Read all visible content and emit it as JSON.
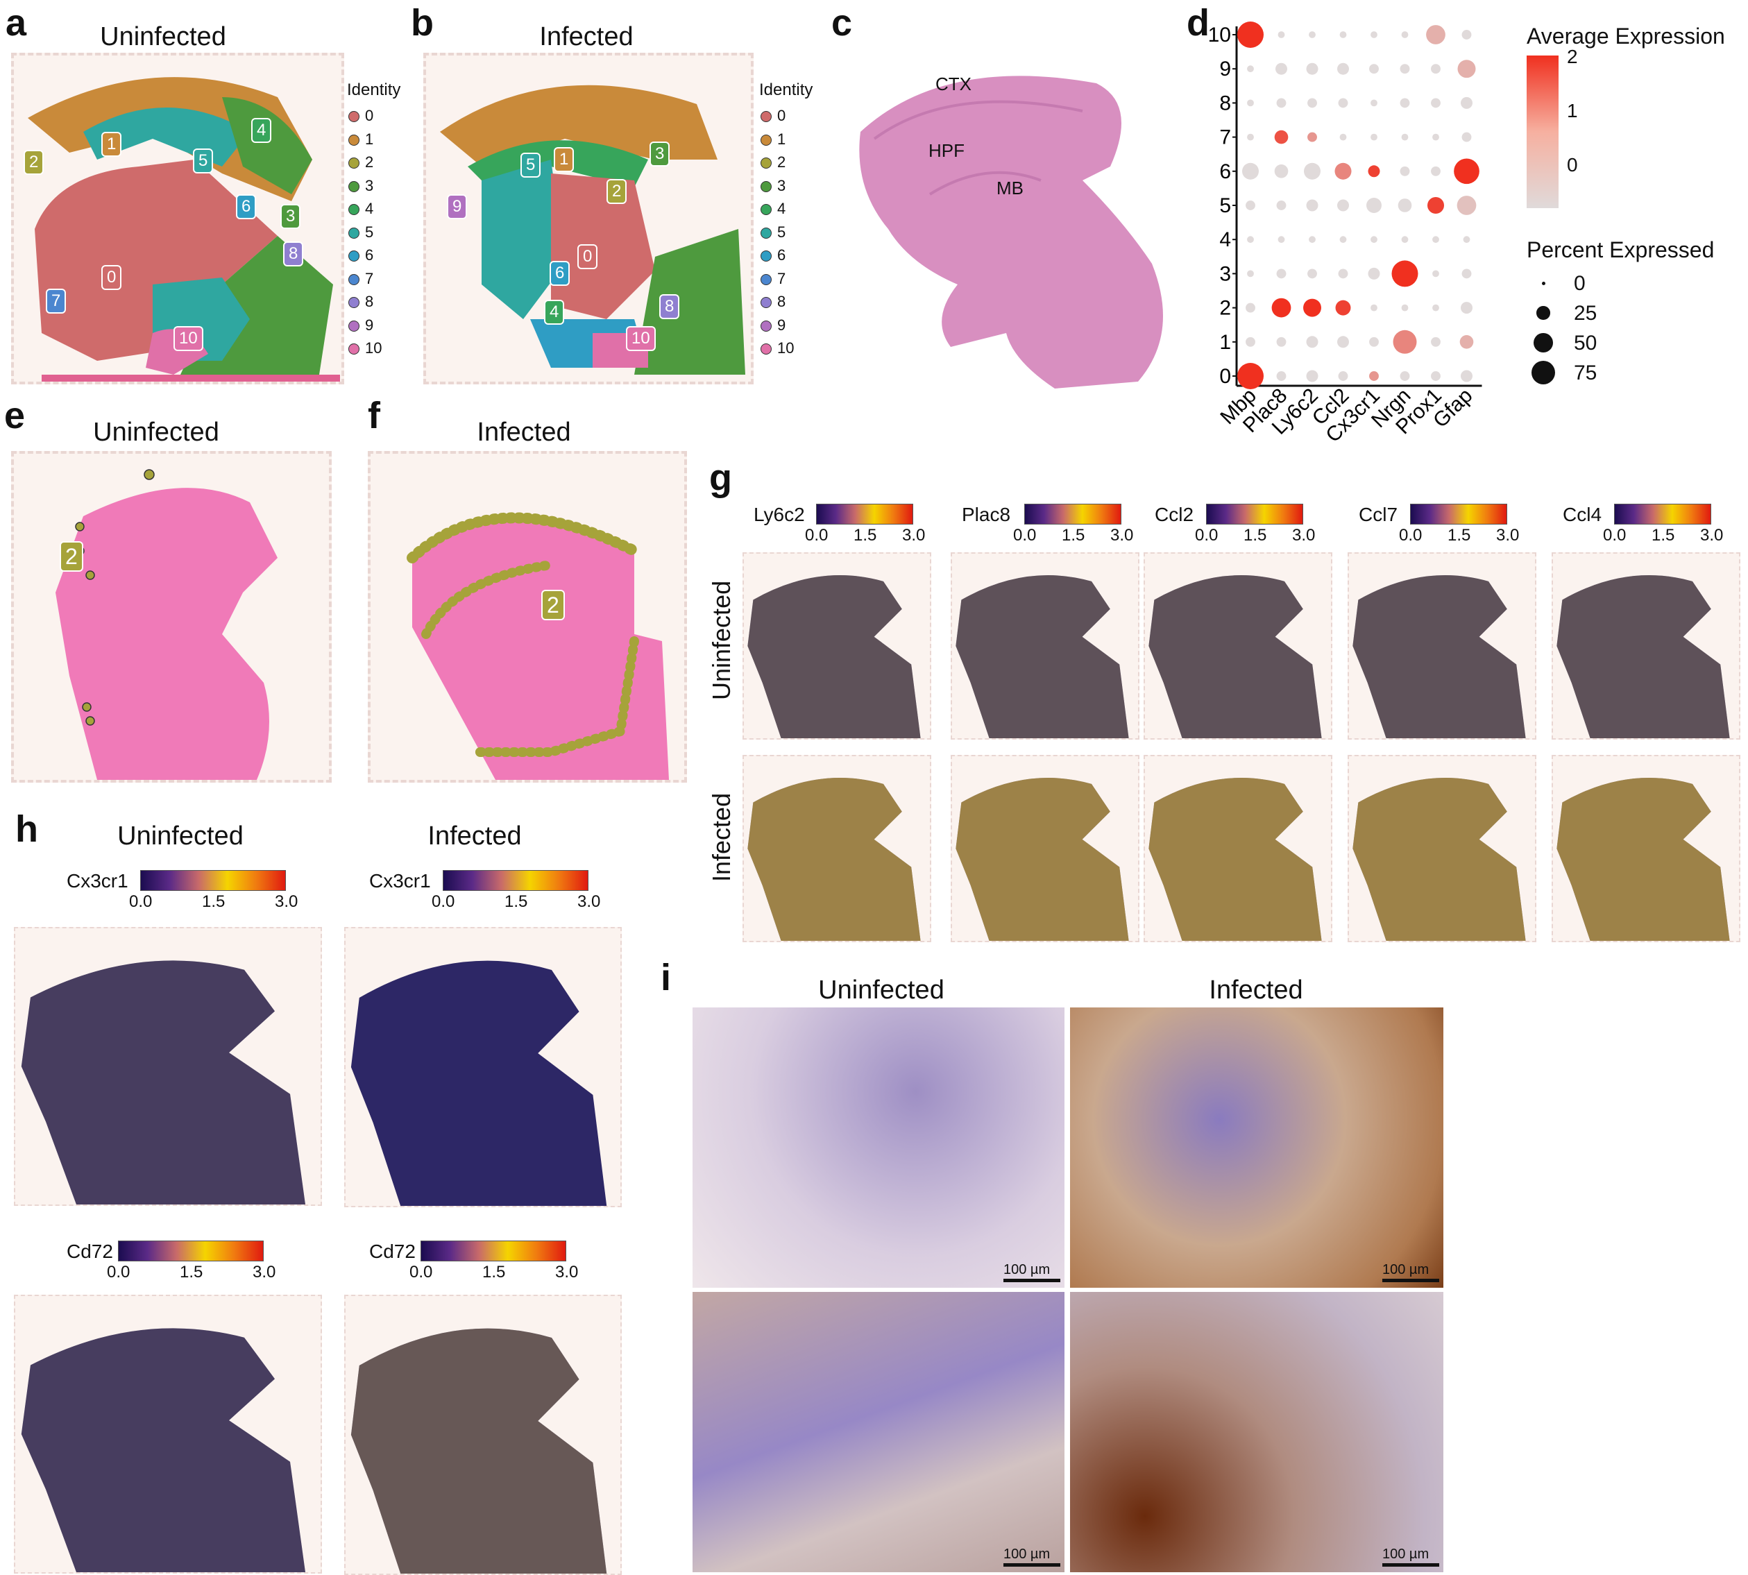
{
  "panels": {
    "a": {
      "letter": "a",
      "title": "Uninfected"
    },
    "b": {
      "letter": "b",
      "title": "Infected"
    },
    "c": {
      "letter": "c",
      "regions": [
        "CTX",
        "HPF",
        "MB"
      ]
    },
    "d": {
      "letter": "d"
    },
    "e": {
      "letter": "e",
      "title": "Uninfected",
      "cluster": "2"
    },
    "f": {
      "letter": "f",
      "title": "Infected",
      "cluster": "2"
    },
    "g": {
      "letter": "g",
      "genes": [
        "Ly6c2",
        "Plac8",
        "Ccl2",
        "Ccl7",
        "Ccl4"
      ],
      "rows": [
        "Uninfected",
        "Infected"
      ]
    },
    "h": {
      "letter": "h",
      "cols": [
        "Uninfected",
        "Infected"
      ],
      "genes": [
        "Cx3cr1",
        "Cd72"
      ]
    },
    "i": {
      "letter": "i",
      "cols": [
        "Uninfected",
        "Infected"
      ],
      "scale": "100 µm"
    }
  },
  "identity_legend": {
    "title": "Identity",
    "items": [
      {
        "label": "0",
        "color": "#cf6b6b"
      },
      {
        "label": "1",
        "color": "#c98a3a"
      },
      {
        "label": "2",
        "color": "#a6a33a"
      },
      {
        "label": "3",
        "color": "#4e9a3e"
      },
      {
        "label": "4",
        "color": "#37a55b"
      },
      {
        "label": "5",
        "color": "#2fa7a0"
      },
      {
        "label": "6",
        "color": "#2f9dc4"
      },
      {
        "label": "7",
        "color": "#4b86cf"
      },
      {
        "label": "8",
        "color": "#8f7fd0"
      },
      {
        "label": "9",
        "color": "#b070c0"
      },
      {
        "label": "10",
        "color": "#e070a8"
      }
    ]
  },
  "colorbar_ticks": [
    "0.0",
    "1.5",
    "3.0"
  ],
  "chart_data": {
    "type": "dot",
    "genes": [
      "Mbp",
      "Plac8",
      "Ly6c2",
      "Ccl2",
      "Cx3cr1",
      "Nrgn",
      "Prox1",
      "Gfap"
    ],
    "clusters": [
      "10",
      "9",
      "8",
      "7",
      "6",
      "5",
      "4",
      "3",
      "2",
      "1",
      "0"
    ],
    "avg_expr_title": "Average Expression",
    "avg_expr_ticks": [
      "2",
      "1",
      "0"
    ],
    "pct_title": "Percent Expressed",
    "pct_ticks": [
      "0",
      "25",
      "50",
      "75"
    ],
    "rows": [
      {
        "cluster": "10",
        "pct": [
          75,
          5,
          5,
          5,
          5,
          5,
          40,
          10
        ],
        "avg": [
          2,
          0,
          0,
          0,
          0,
          0,
          0.5,
          0
        ]
      },
      {
        "cluster": "9",
        "pct": [
          5,
          15,
          15,
          15,
          10,
          10,
          10,
          35
        ],
        "avg": [
          0,
          0,
          0,
          0,
          0,
          0,
          0,
          0.5
        ]
      },
      {
        "cluster": "8",
        "pct": [
          5,
          10,
          10,
          10,
          5,
          10,
          10,
          15
        ],
        "avg": [
          0,
          0,
          0,
          0,
          0,
          0,
          0,
          0
        ]
      },
      {
        "cluster": "7",
        "pct": [
          5,
          20,
          10,
          5,
          5,
          5,
          5,
          10
        ],
        "avg": [
          0,
          1.6,
          0.8,
          0,
          0,
          0,
          0,
          0
        ]
      },
      {
        "cluster": "6",
        "pct": [
          30,
          20,
          30,
          30,
          15,
          10,
          10,
          70
        ],
        "avg": [
          0,
          0,
          0,
          1,
          1.8,
          0,
          0,
          2
        ]
      },
      {
        "cluster": "5",
        "pct": [
          10,
          10,
          15,
          15,
          25,
          20,
          30,
          40
        ],
        "avg": [
          0,
          0,
          0,
          0,
          0,
          0,
          1.8,
          0.3
        ]
      },
      {
        "cluster": "4",
        "pct": [
          5,
          5,
          5,
          5,
          5,
          5,
          5,
          5
        ],
        "avg": [
          0,
          0,
          0,
          0,
          0,
          0,
          0,
          0
        ]
      },
      {
        "cluster": "3",
        "pct": [
          5,
          10,
          10,
          10,
          15,
          75,
          5,
          10
        ],
        "avg": [
          0,
          0,
          0,
          0,
          0,
          2,
          0,
          0
        ]
      },
      {
        "cluster": "2",
        "pct": [
          10,
          40,
          35,
          25,
          5,
          5,
          5,
          15
        ],
        "avg": [
          0,
          2,
          2,
          1.8,
          0,
          0,
          0,
          0
        ]
      },
      {
        "cluster": "1",
        "pct": [
          10,
          10,
          15,
          15,
          10,
          60,
          10,
          20
        ],
        "avg": [
          0,
          0,
          0,
          0,
          0,
          1,
          0,
          0.5
        ]
      },
      {
        "cluster": "0",
        "pct": [
          75,
          10,
          15,
          10,
          10,
          10,
          10,
          15
        ],
        "avg": [
          2,
          0,
          0,
          0,
          0.8,
          0,
          0,
          0
        ]
      }
    ]
  }
}
